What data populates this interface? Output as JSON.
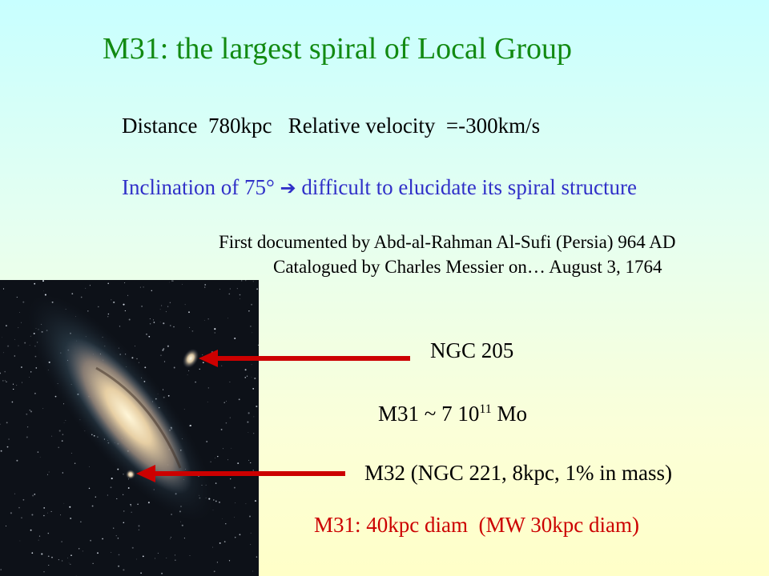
{
  "slide": {
    "title": "M31: the largest spiral of Local Group",
    "distance_line": "Distance  780kpc   Relative velocity  =-300km/s",
    "inclination": {
      "text_before": "Inclination of 75°",
      "arrow_icon": "right-arrow-icon",
      "text_after": "difficult to elucidate its spiral structure"
    },
    "first_documented": "First documented by Abd-al-Rahman Al-Sufi (Persia) 964 AD",
    "catalogued": "Catalogued by Charles Messier on… August 3, 1764",
    "labels": {
      "ngc205": "NGC 205",
      "mass_prefix": "M31 ~ 7 10",
      "mass_exponent": "11",
      "mass_suffix": " Mo",
      "m32": "M32 (NGC 221, 8kpc, 1% in mass)",
      "diameter": "M31: 40kpc diam  (MW 30kpc diam)"
    }
  },
  "colors": {
    "title": "#128a12",
    "inclination": "#3030c8",
    "diameter": "#cc0000",
    "arrow": "#cc0000"
  }
}
